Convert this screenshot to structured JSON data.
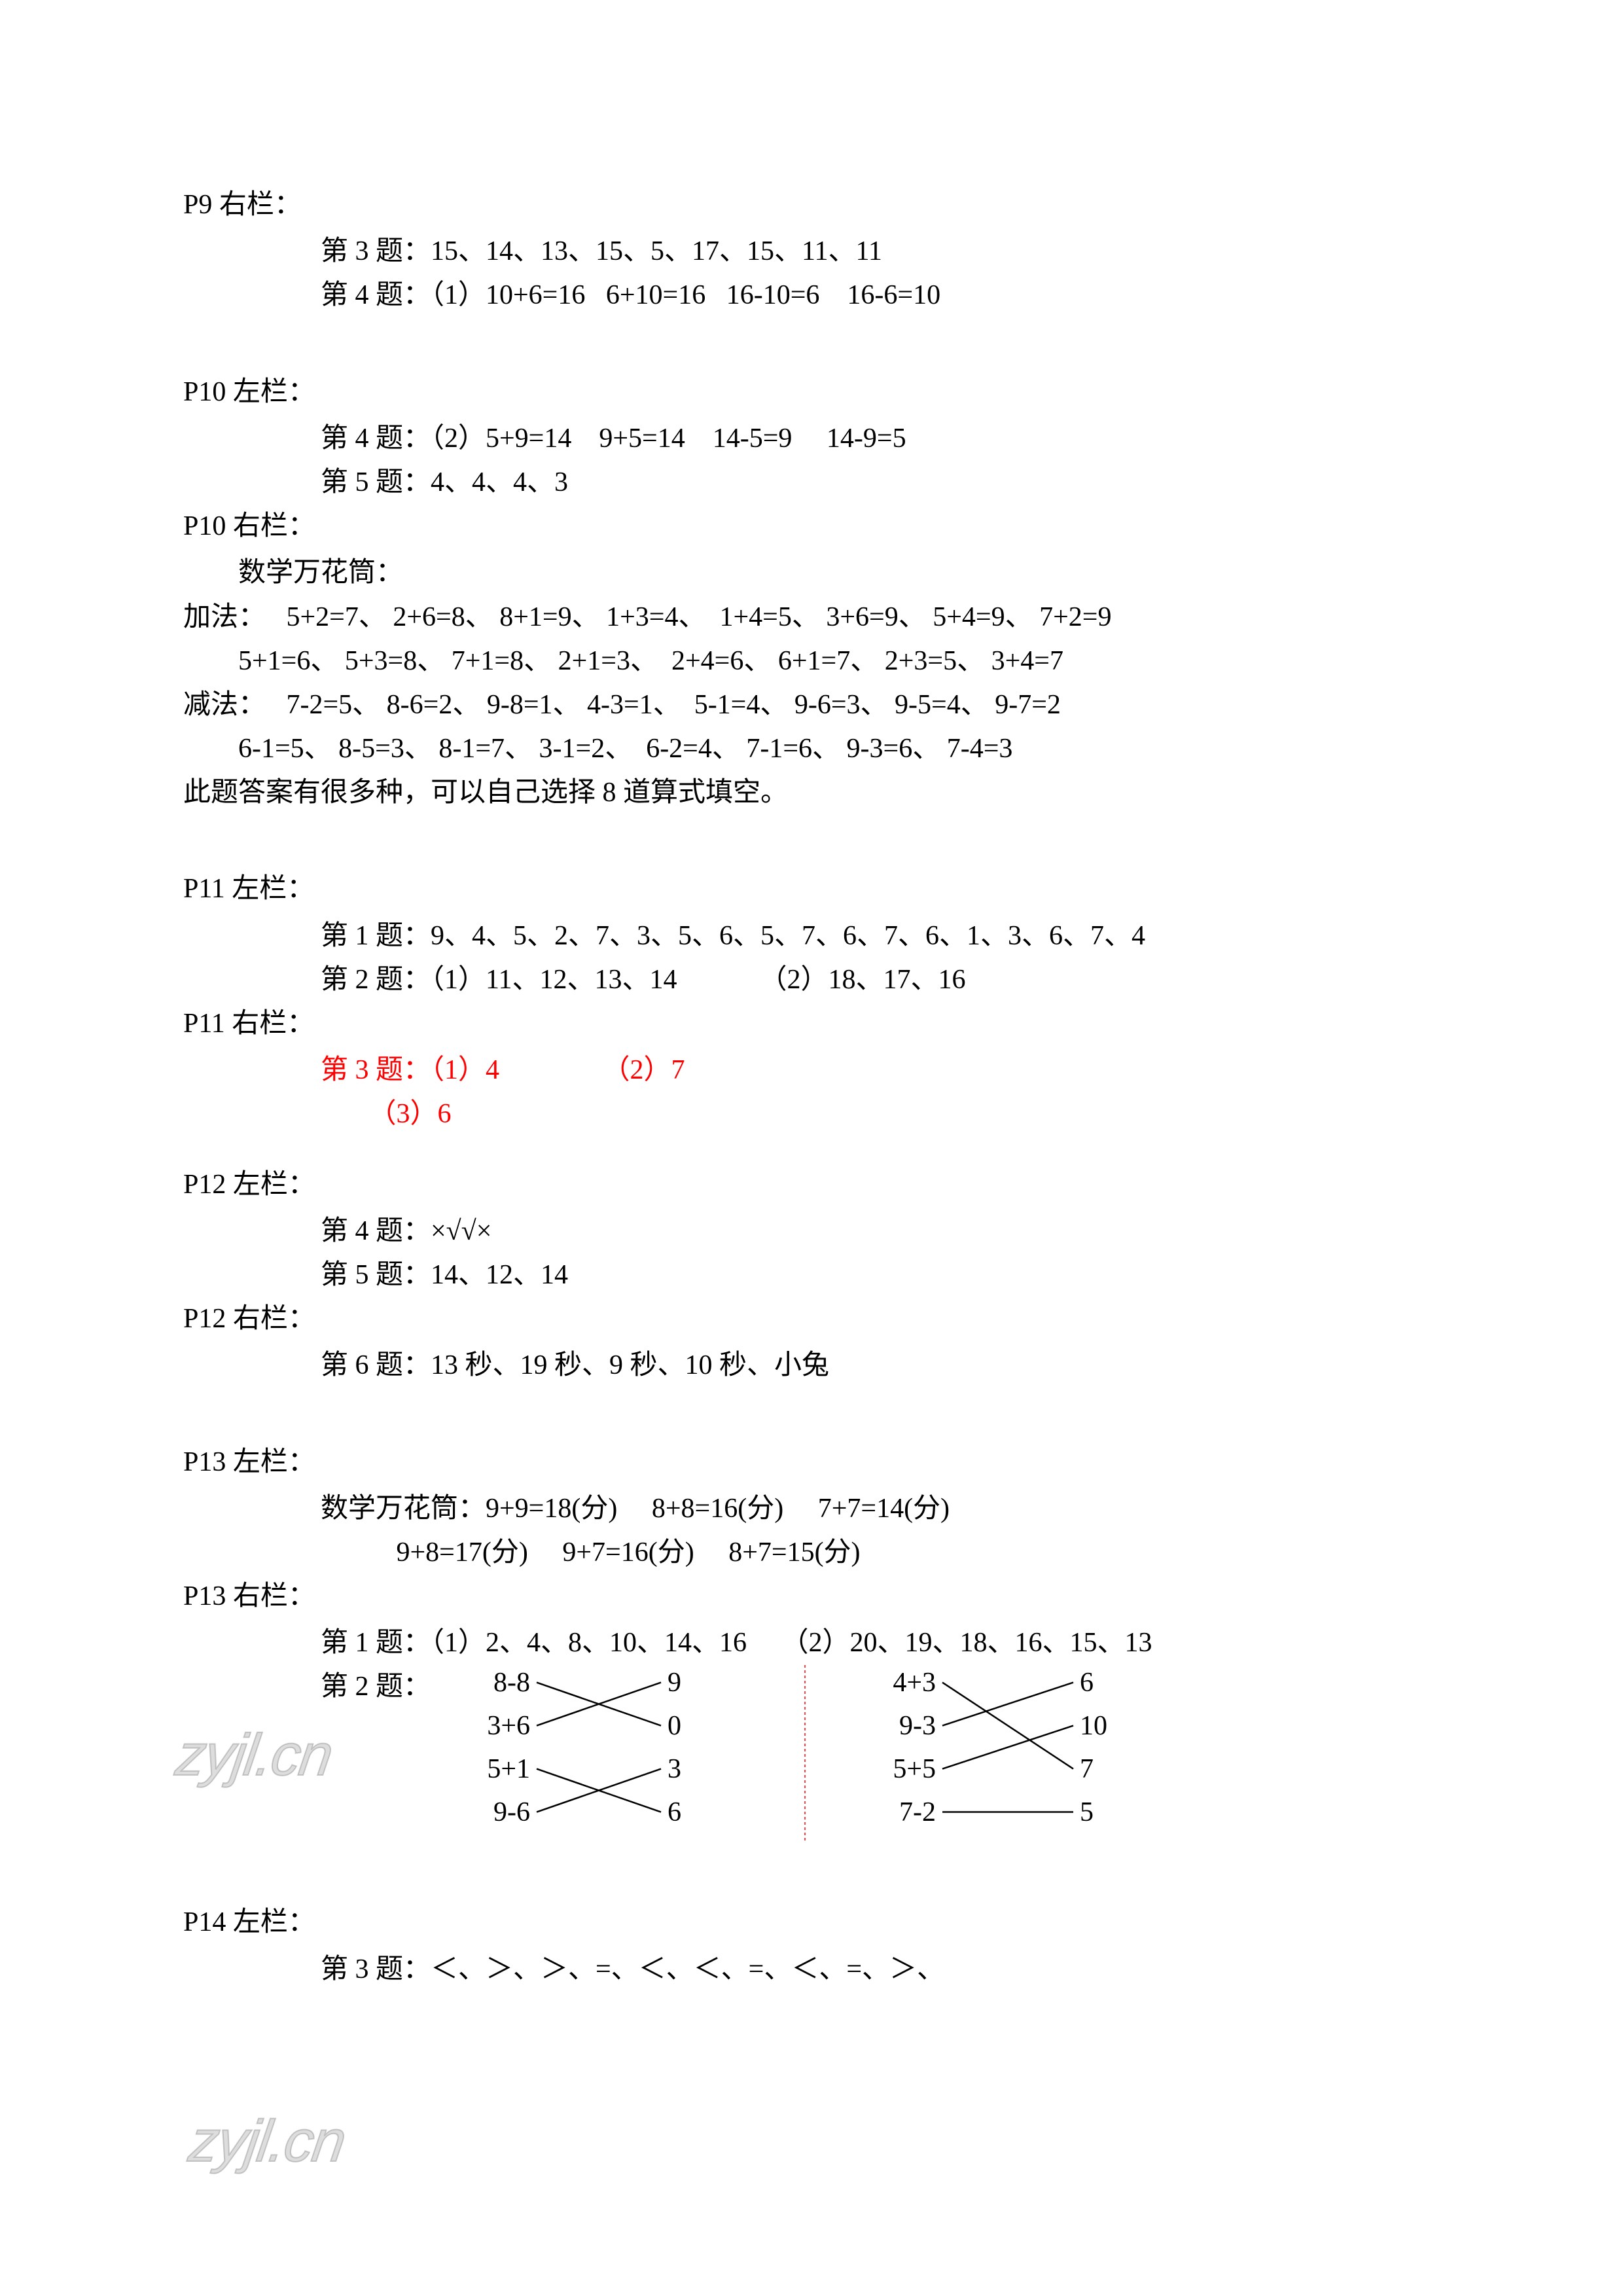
{
  "text_color": "#000000",
  "highlight_color": "#ff0000",
  "background_color": "#ffffff",
  "watermark_text": "zyjl.cn",
  "p9r": {
    "title": "P9 右栏：",
    "q3": "第 3 题：15、14、13、15、5、17、15、11、11",
    "q4": "第 4 题：（1）10+6=16   6+10=16   16-10=6    16-6=10"
  },
  "p10l": {
    "title": "P10 左栏：",
    "q4": "第 4 题：（2）5+9=14    9+5=14    14-5=9     14-9=5",
    "q5": "第 5 题：4、4、4、3"
  },
  "p10r": {
    "title": "P10 右栏：",
    "sub": "        数学万花筒：",
    "add1": "加法：   5+2=7、 2+6=8、 8+1=9、 1+3=4、  1+4=5、 3+6=9、 5+4=9、 7+2=9",
    "add2": "        5+1=6、 5+3=8、 7+1=8、 2+1=3、  2+4=6、 6+1=7、 2+3=5、 3+4=7",
    "sub1": "减法：   7-2=5、 8-6=2、 9-8=1、 4-3=1、  5-1=4、 9-6=3、 9-5=4、 9-7=2",
    "sub2": "        6-1=5、 8-5=3、 8-1=7、 3-1=2、  6-2=4、 7-1=6、 9-3=6、 7-4=3",
    "note": "此题答案有很多种，可以自己选择 8 道算式填空。"
  },
  "p11l": {
    "title": "P11 左栏：",
    "q1": "第 1 题：9、4、5、2、7、3、5、6、5、7、6、7、6、1、3、6、7、4",
    "q2": "第 2 题：（1）11、12、13、14            （2）18、17、16"
  },
  "p11r": {
    "title": "P11 右栏：",
    "q3a": "第 3 题：（1）4               （2）7",
    "q3b": "       （3）6"
  },
  "p12l": {
    "title": "P12 左栏：",
    "q4": "第 4 题：×√√×",
    "q5": "第 5 题：14、12、14"
  },
  "p12r": {
    "title": "P12 右栏：",
    "q6": "第 6 题：13 秒、19 秒、9 秒、10 秒、小兔"
  },
  "p13l": {
    "title": "P13 左栏：",
    "m1": "数学万花筒：9+9=18(分)     8+8=16(分)     7+7=14(分)",
    "m2": "           9+8=17(分)     9+7=16(分)     8+7=15(分)"
  },
  "p13r": {
    "title": "P13 右栏：",
    "q1": "第 1 题：（1）2、4、8、10、14、16     （2）20、19、18、16、15、13",
    "q2_label": "第 2 题：   ",
    "match_left": {
      "left_items": [
        "8-8",
        "3+6",
        "5+1",
        "9-6"
      ],
      "right_items": [
        "9",
        "0",
        "3",
        "6"
      ],
      "connections": [
        [
          0,
          1
        ],
        [
          1,
          0
        ],
        [
          2,
          3
        ],
        [
          3,
          2
        ]
      ]
    },
    "match_right": {
      "left_items": [
        "4+3",
        "9-3",
        "5+5",
        "7-2"
      ],
      "right_items": [
        "6",
        "10",
        "7",
        "5"
      ],
      "connections": [
        [
          0,
          2
        ],
        [
          1,
          0
        ],
        [
          2,
          1
        ],
        [
          3,
          3
        ]
      ]
    }
  },
  "p14l": {
    "title": "P14 左栏：",
    "q3": "第 3 题：＜、＞、＞、=、＜、＜、=、＜、=、＞、"
  }
}
